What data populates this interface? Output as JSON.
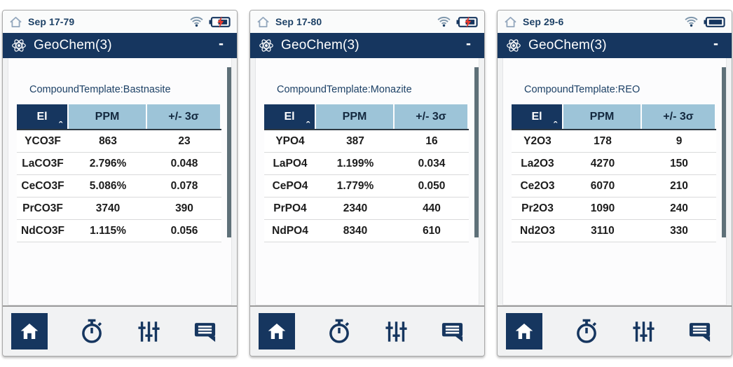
{
  "colors": {
    "navy": "#16365f",
    "header_blue": "#9dc4d8",
    "charge_red": "#e8392d",
    "text_navy": "#1d4166"
  },
  "toolbar": {
    "buttons": [
      "home",
      "stopwatch",
      "sliders",
      "messages"
    ],
    "active": "home"
  },
  "panels": [
    {
      "status": {
        "label": "Sep 17-79",
        "battery": "charging",
        "wifi": "connected"
      },
      "header": {
        "title": "GeoChem(3)",
        "minimize_label": "-"
      },
      "template_label": "CompoundTemplate:Bastnasite",
      "table": {
        "headers": [
          "El",
          "PPM",
          "+/- 3σ"
        ],
        "sorted_by": "El",
        "sort_direction": "asc",
        "rows": [
          [
            "YCO3F",
            "863",
            "23"
          ],
          [
            "LaCO3F",
            "2.796%",
            "0.048"
          ],
          [
            "CeCO3F",
            "5.086%",
            "0.078"
          ],
          [
            "PrCO3F",
            "3740",
            "390"
          ],
          [
            "NdCO3F",
            "1.115%",
            "0.056"
          ]
        ]
      }
    },
    {
      "status": {
        "label": "Sep 17-80",
        "battery": "charging",
        "wifi": "connected"
      },
      "header": {
        "title": "GeoChem(3)",
        "minimize_label": "-"
      },
      "template_label": "CompoundTemplate:Monazite",
      "table": {
        "headers": [
          "El",
          "PPM",
          "+/- 3σ"
        ],
        "sorted_by": "El",
        "sort_direction": "asc",
        "rows": [
          [
            "YPO4",
            "387",
            "16"
          ],
          [
            "LaPO4",
            "1.199%",
            "0.034"
          ],
          [
            "CePO4",
            "1.779%",
            "0.050"
          ],
          [
            "PrPO4",
            "2340",
            "440"
          ],
          [
            "NdPO4",
            "8340",
            "610"
          ]
        ]
      }
    },
    {
      "status": {
        "label": "Sep 29-6",
        "battery": "full",
        "wifi": "connected"
      },
      "header": {
        "title": "GeoChem(3)",
        "minimize_label": "-"
      },
      "template_label": "CompoundTemplate:REO",
      "table": {
        "headers": [
          "El",
          "PPM",
          "+/- 3σ"
        ],
        "sorted_by": "El",
        "sort_direction": "asc",
        "rows": [
          [
            "Y2O3",
            "178",
            "9"
          ],
          [
            "La2O3",
            "4270",
            "150"
          ],
          [
            "Ce2O3",
            "6070",
            "210"
          ],
          [
            "Pr2O3",
            "1090",
            "240"
          ],
          [
            "Nd2O3",
            "3110",
            "330"
          ]
        ]
      }
    }
  ]
}
